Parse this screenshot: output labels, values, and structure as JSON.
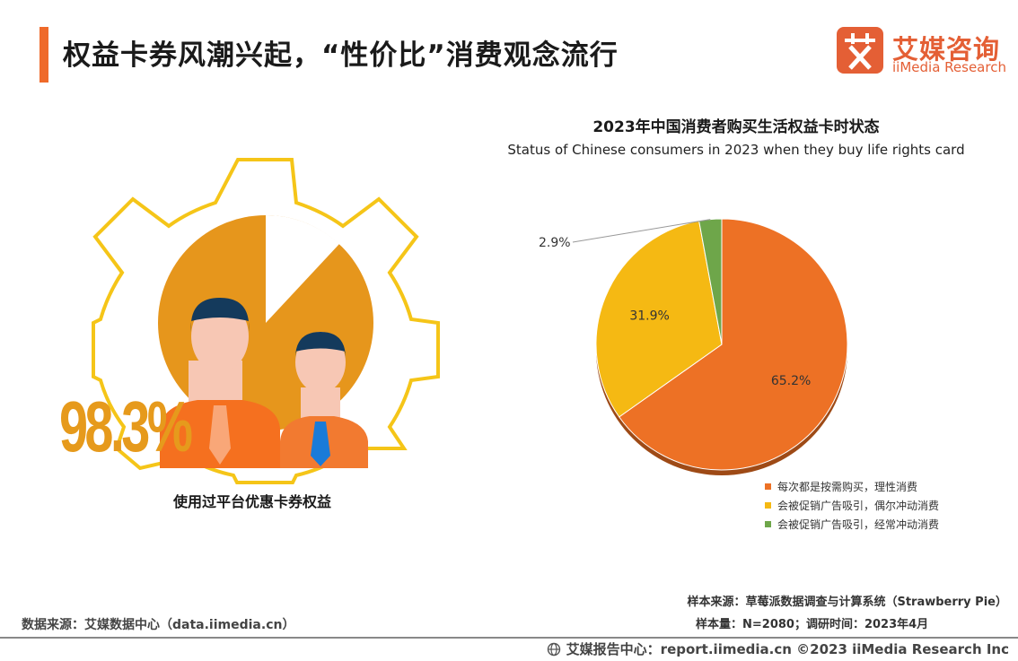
{
  "header": {
    "title": "权益卡券风潮兴起，“性价比”消费观念流行"
  },
  "logo": {
    "mark_char": "艾",
    "name_cn": "艾媒咨询",
    "name_en": "iiMedia Research"
  },
  "left_panel": {
    "percentage": "98.3%",
    "caption": "使用过平台优惠卡券权益"
  },
  "colors": {
    "accent": "#ef6a2a",
    "slice_rational": "#ed7125",
    "slice_occasional": "#f5b913",
    "slice_frequent": "#6ea64a",
    "gear_outline": "#f5c518",
    "gold": "#e69a1c"
  },
  "chart_data": {
    "type": "pie",
    "title": "2023年中国消费者购买生活权益卡时状态",
    "subtitle": "Status of Chinese consumers in 2023 when they buy life rights card",
    "slices": [
      {
        "label": "每次都是按需购买，理性消费",
        "value": 65.2,
        "display": "65.2%",
        "color": "#ed7125"
      },
      {
        "label": "会被促销广告吸引，偶尔冲动消费",
        "value": 31.9,
        "display": "31.9%",
        "color": "#f5b913"
      },
      {
        "label": "会被促销广告吸引，经常冲动消费",
        "value": 2.9,
        "display": "2.9%",
        "color": "#6ea64a"
      }
    ],
    "legend_position": "bottom-right"
  },
  "footer": {
    "data_source": "数据来源：艾媒数据中心（data.iimedia.cn）",
    "sample_source": "样本来源：草莓派数据调查与计算系统（Strawberry Pie）",
    "sample_size": "样本量：N=2080；调研时间：2023年4月",
    "report_center": "艾媒报告中心：report.iimedia.cn  ©2023  iiMedia Research  Inc"
  }
}
